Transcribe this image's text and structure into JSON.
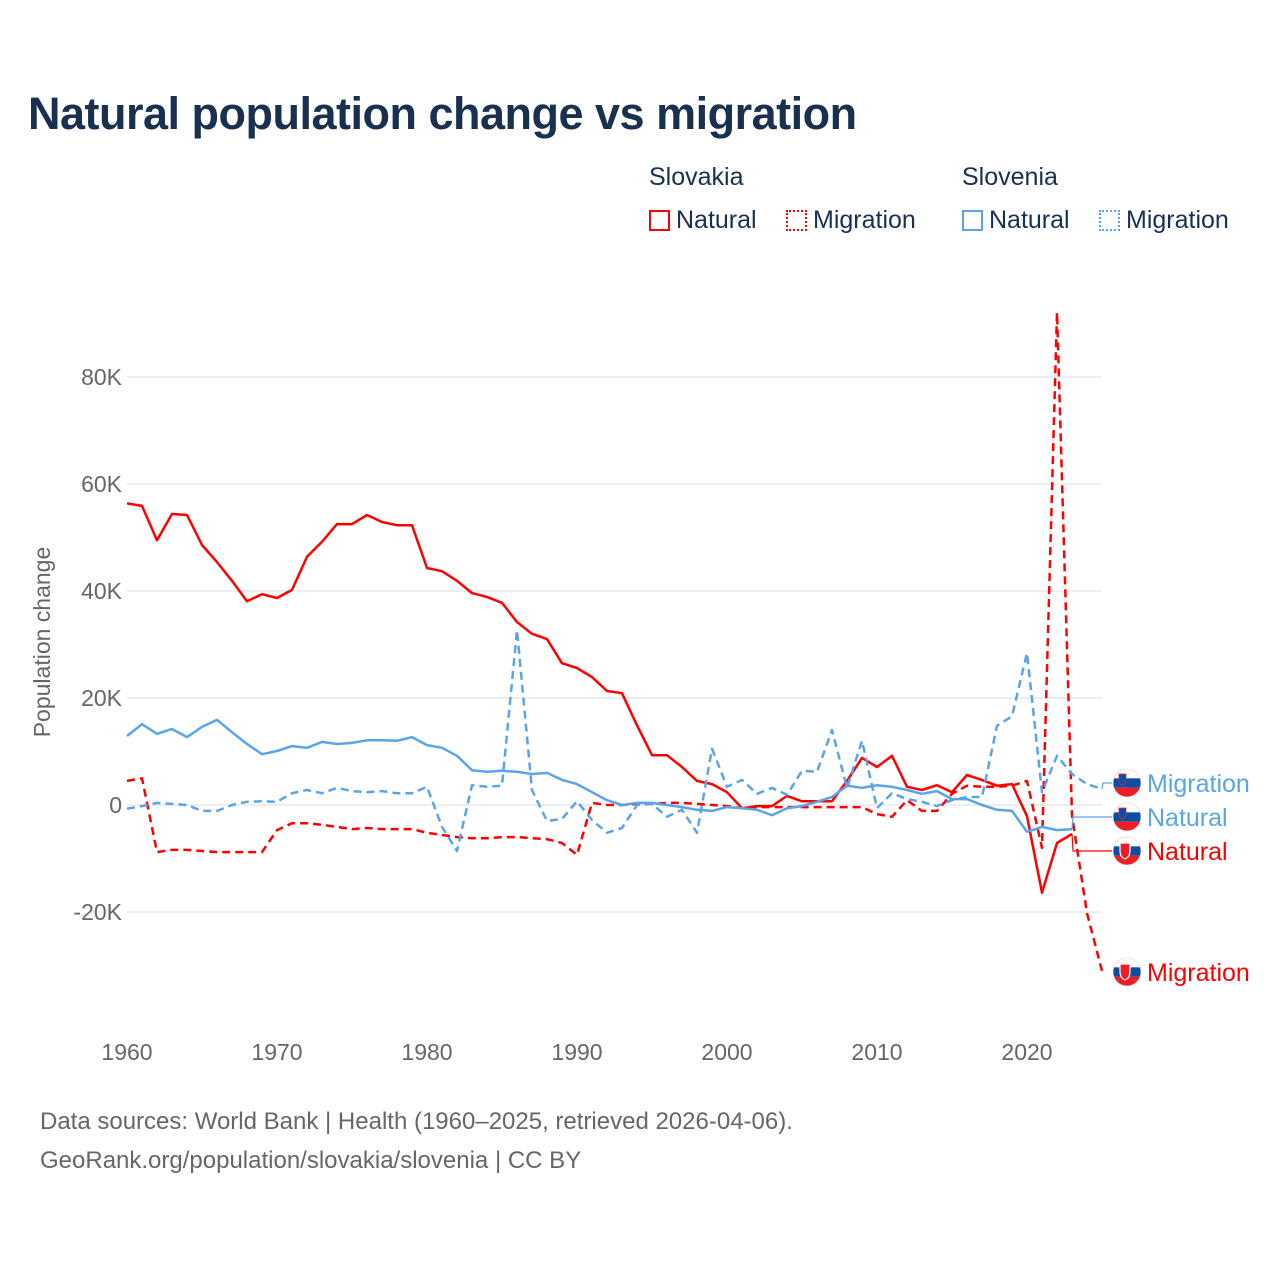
{
  "title": "Natural population change vs migration",
  "legend": {
    "groups": [
      {
        "name": "Slovakia",
        "color": "#ff0000",
        "items": [
          "Natural",
          "Migration"
        ]
      },
      {
        "name": "Slovenia",
        "color": "#5aa5ea",
        "items": [
          "Natural",
          "Migration"
        ]
      }
    ]
  },
  "footer": {
    "line1": "Data sources: World Bank | Health (1960–2025, retrieved 2026-04-06).",
    "line2": "GeoRank.org/population/slovakia/slovenia | CC BY"
  },
  "chart_data": {
    "type": "line",
    "title": "Natural population change vs migration",
    "xlabel": "",
    "ylabel": "Population change",
    "xlim": [
      1960,
      2025
    ],
    "ylim": [
      -20000,
      80000
    ],
    "x_ticks": [
      "1960",
      "1970",
      "1980",
      "1990",
      "2000",
      "2010",
      "2020"
    ],
    "y_ticks": [
      {
        "v": 80000,
        "label": "80K"
      },
      {
        "v": 60000,
        "label": "60K"
      },
      {
        "v": 40000,
        "label": "40K"
      },
      {
        "v": 20000,
        "label": "20K"
      },
      {
        "v": 0,
        "label": "0"
      },
      {
        "v": -20000,
        "label": "-20K"
      }
    ],
    "grid": true,
    "legend_position": "top-right",
    "start_year": 1960,
    "series": [
      {
        "name": "Slovakia Natural",
        "country": "Slovakia",
        "kind": "Natural",
        "color": "#ff0000",
        "dashed": false,
        "end_label": "Natural",
        "values": [
          56400,
          55900,
          49500,
          54400,
          54200,
          48600,
          45400,
          41900,
          38100,
          39400,
          38700,
          40200,
          46400,
          49200,
          52500,
          52500,
          54200,
          52900,
          52300,
          52300,
          44300,
          43700,
          41900,
          39600,
          38900,
          37800,
          34200,
          32000,
          31000,
          26500,
          25600,
          23900,
          21300,
          20900,
          14900,
          9300,
          9300,
          7100,
          4500,
          3900,
          2400,
          -600,
          -200,
          -200,
          1700,
          700,
          700,
          700,
          4500,
          8800,
          7100,
          9200,
          3400,
          2800,
          3700,
          2400,
          5600,
          4700,
          3600,
          3900,
          -2100,
          -16400,
          -7100,
          -5400
        ]
      },
      {
        "name": "Slovakia Migration",
        "country": "Slovakia",
        "kind": "Migration",
        "color": "#ff0000",
        "dashed": true,
        "end_label": "Migration",
        "values": [
          4500,
          5000,
          -8800,
          -8400,
          -8400,
          -8600,
          -8800,
          -8800,
          -8800,
          -8800,
          -4700,
          -3400,
          -3400,
          -3700,
          -4100,
          -4500,
          -4300,
          -4500,
          -4500,
          -4500,
          -5200,
          -5600,
          -6000,
          -6200,
          -6200,
          -6000,
          -6000,
          -6200,
          -6400,
          -7100,
          -9300,
          400,
          0,
          0,
          200,
          200,
          400,
          400,
          200,
          0,
          -200,
          -600,
          -400,
          -400,
          -400,
          -400,
          -400,
          -400,
          -400,
          -400,
          -1700,
          -2200,
          900,
          -1100,
          -1100,
          2100,
          3600,
          3400,
          3400,
          3600,
          4500,
          -8000,
          92100,
          -2000,
          -20200,
          -31000
        ]
      },
      {
        "name": "Slovenia Natural",
        "country": "Slovenia",
        "kind": "Natural",
        "color": "#5aa5ea",
        "dashed": false,
        "end_label": "Natural",
        "values": [
          12900,
          15100,
          13300,
          14200,
          12700,
          14600,
          15900,
          13600,
          11400,
          9500,
          10100,
          11000,
          10700,
          11800,
          11400,
          11600,
          12100,
          12100,
          12000,
          12700,
          11200,
          10700,
          9200,
          6500,
          6200,
          6400,
          6200,
          5800,
          6000,
          4700,
          3900,
          2400,
          900,
          0,
          400,
          400,
          0,
          -400,
          -900,
          -1100,
          -400,
          -600,
          -900,
          -1900,
          -600,
          -200,
          600,
          1500,
          3600,
          3200,
          3700,
          3400,
          2800,
          2100,
          2600,
          1100,
          1100,
          0,
          -900,
          -1100,
          -5000,
          -4100,
          -4700,
          -4500
        ]
      },
      {
        "name": "Slovenia Migration",
        "country": "Slovenia",
        "kind": "Migration",
        "color": "#5aa5ea",
        "dashed": true,
        "end_label": "Migration",
        "values": [
          -700,
          -200,
          400,
          200,
          0,
          -1100,
          -1100,
          0,
          600,
          700,
          600,
          2200,
          2800,
          2200,
          3200,
          2600,
          2400,
          2600,
          2200,
          2200,
          3400,
          -4100,
          -8600,
          3700,
          3400,
          3600,
          32700,
          2800,
          -3000,
          -2600,
          700,
          -2800,
          -5200,
          -4300,
          0,
          200,
          -2200,
          -900,
          -5200,
          10500,
          3400,
          4700,
          2100,
          3200,
          1900,
          6400,
          6200,
          14000,
          3200,
          12000,
          -600,
          2200,
          1100,
          600,
          -200,
          900,
          1500,
          1500,
          14800,
          16600,
          28400,
          2400,
          9200,
          5800,
          3900,
          3000
        ]
      }
    ]
  }
}
